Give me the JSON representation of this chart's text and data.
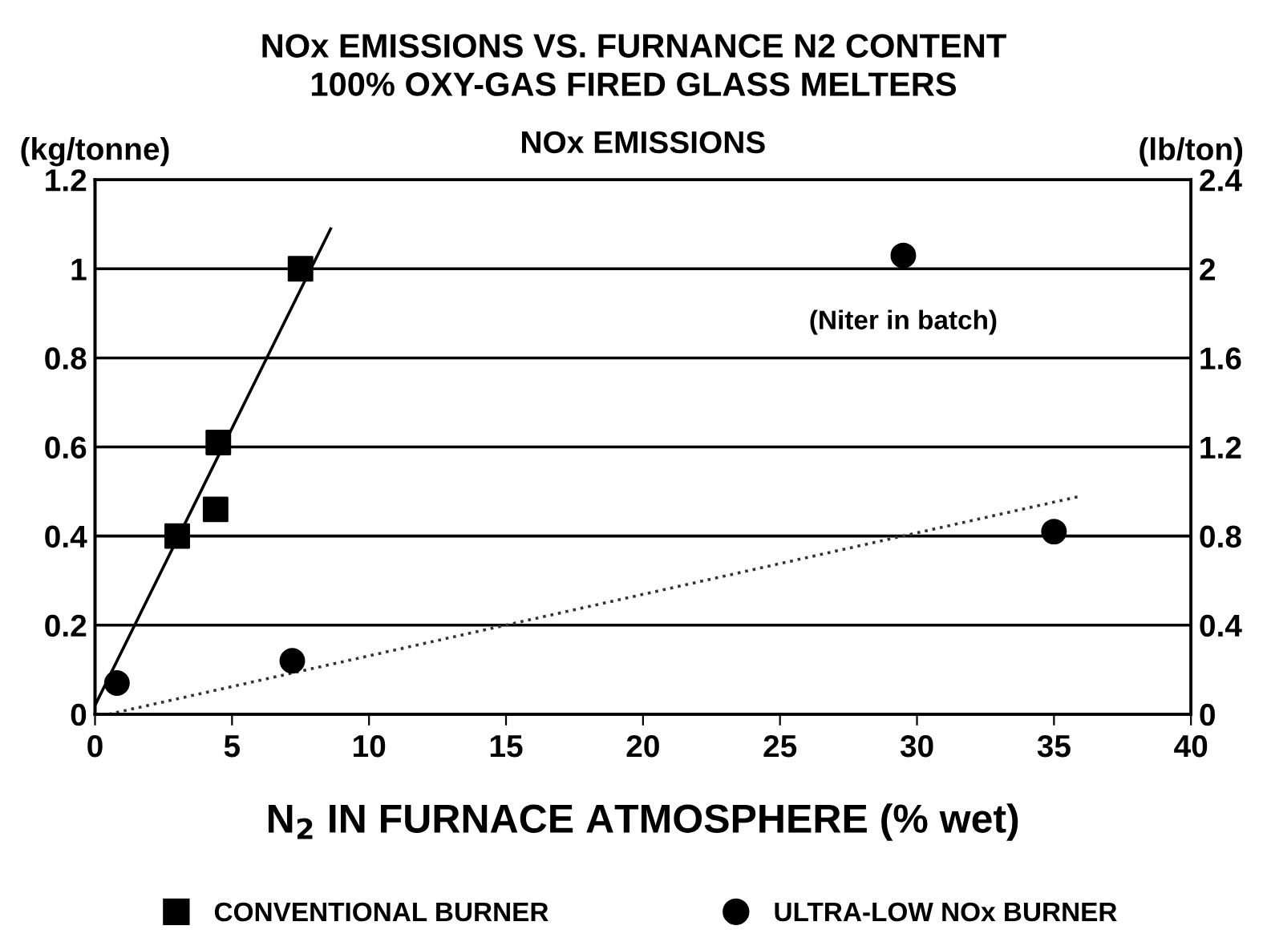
{
  "chart_data": {
    "type": "scatter",
    "title": "NOx EMISSIONS VS. FURNANCE N2 CONTENT\n100% OXY-GAS FIRED GLASS MELTERS",
    "subtitle": "NOx EMISSIONS",
    "xlabel": "N$_{2}$ IN FURNACE ATMOSPHERE (% wet)",
    "ylabel": "(kg/tonne)",
    "y2label": "(lb/ton)",
    "series": [
      {
        "name": "CONVENTIONAL BURNER",
        "color": "#000000",
        "marker": "square",
        "x": [
          3.0,
          4.4,
          4.5,
          7.5
        ],
        "values": [
          0.4,
          0.46,
          0.61,
          1.0
        ]
      },
      {
        "name": "ULTRA-LOW NOx BURNER",
        "color": "#000000",
        "marker": "circle",
        "x": [
          0.8,
          7.2,
          29.5,
          35.0
        ],
        "values": [
          0.07,
          0.12,
          1.03,
          0.41
        ]
      },
      {
        "type": "line",
        "color": "#000000",
        "line_style": "solid",
        "x": [
          0,
          8.6
        ],
        "values": [
          0.02,
          1.09
        ]
      },
      {
        "type": "line",
        "color": "#333333",
        "line_style": "dotted",
        "x": [
          0.5,
          36
        ],
        "values": [
          0,
          0.49
        ]
      }
    ],
    "annotations": [
      {
        "text": "(Niter in batch)",
        "x": 29.5,
        "y": 1.03
      }
    ],
    "xlim": [
      0,
      40
    ],
    "xticks": [
      0,
      5,
      10,
      15,
      20,
      25,
      30,
      35,
      40
    ],
    "ylim": [
      0,
      1.2
    ],
    "yticks": [
      0,
      0.2,
      0.4,
      0.6,
      0.8,
      1,
      1.2
    ],
    "y2lim": [
      0,
      2.4
    ],
    "y2ticks": [
      0,
      0.4,
      0.8,
      1.2,
      1.6,
      2,
      2.4
    ],
    "grid": "y",
    "legend": "bottom"
  }
}
